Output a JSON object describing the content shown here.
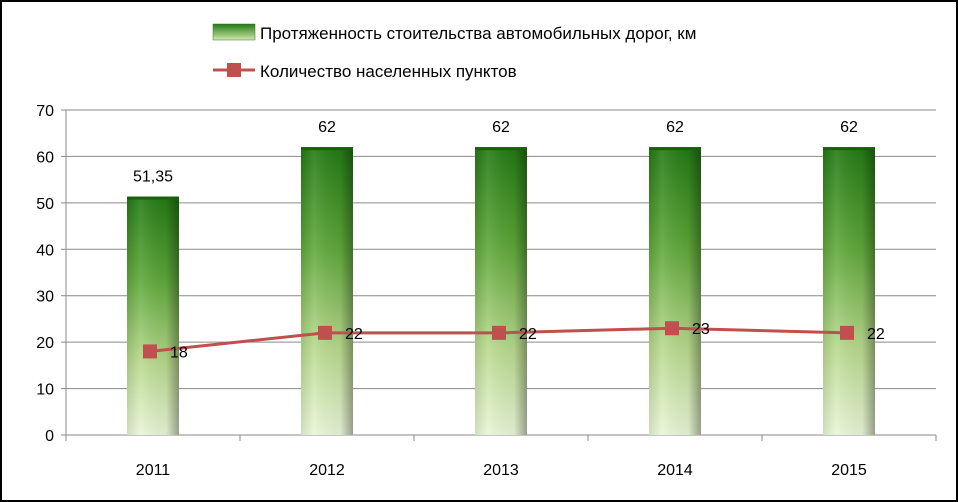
{
  "chart_data": {
    "type": "bar",
    "categories": [
      "2011",
      "2012",
      "2013",
      "2014",
      "2015"
    ],
    "ylim": [
      0,
      70
    ],
    "yticks": [
      0,
      10,
      20,
      30,
      40,
      50,
      60,
      70
    ],
    "grid": true,
    "legend_position": "top",
    "series": [
      {
        "name": "Протяженность стоительства автомобильных дорог, км",
        "type": "bar",
        "values": [
          51.35,
          62,
          62,
          62,
          62
        ],
        "labels": [
          "51,35",
          "62",
          "62",
          "62",
          "62"
        ],
        "color": "#2e7d1f"
      },
      {
        "name": "Количество населенных пунктов",
        "type": "line",
        "values": [
          18,
          22,
          22,
          23,
          22
        ],
        "labels": [
          "18",
          "22",
          "22",
          "23",
          "22"
        ],
        "color": "#c0504d"
      }
    ]
  }
}
